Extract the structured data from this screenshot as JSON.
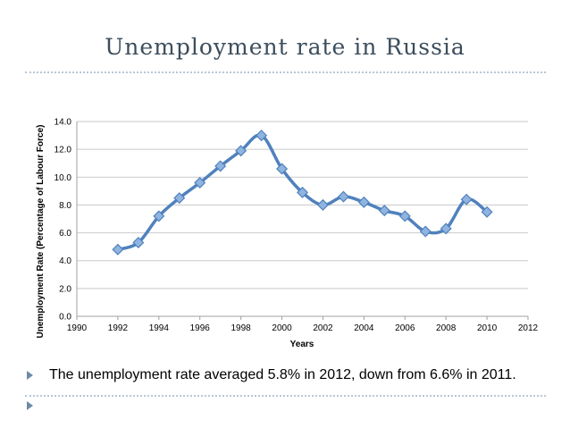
{
  "slide": {
    "title": "Unemployment rate in Russia",
    "bullet_text": "The unemployment rate averaged 5.8% in 2012, down from 6.6% in 2011."
  },
  "colors": {
    "line": "#4f81bd",
    "marker_fill": "#8fb4df",
    "grid": "#c9c9c9"
  },
  "chart_data": {
    "type": "line",
    "title": "",
    "xlabel": "Years",
    "ylabel": "Unemployment Rate (Percentage of Labour Force)",
    "xlim": [
      1990,
      2012
    ],
    "ylim": [
      0,
      14
    ],
    "x_ticks": [
      "1990",
      "1992",
      "1994",
      "1996",
      "1998",
      "2000",
      "2002",
      "2004",
      "2006",
      "2008",
      "2010",
      "2012"
    ],
    "y_ticks": [
      "0.0",
      "2.0",
      "4.0",
      "6.0",
      "8.0",
      "10.0",
      "12.0",
      "14.0"
    ],
    "grid": true,
    "legend": "none",
    "series": [
      {
        "x": [
          1992,
          1993,
          1994,
          1995,
          1996,
          1997,
          1998,
          1999,
          2000,
          2001,
          2002,
          2003,
          2004,
          2005,
          2006,
          2007,
          2008,
          2009,
          2010
        ],
        "y": [
          4.8,
          5.3,
          7.2,
          8.5,
          9.6,
          10.8,
          11.9,
          13.0,
          10.6,
          8.9,
          8.0,
          8.6,
          8.2,
          7.6,
          7.2,
          6.1,
          6.3,
          8.4,
          7.5
        ]
      }
    ]
  }
}
